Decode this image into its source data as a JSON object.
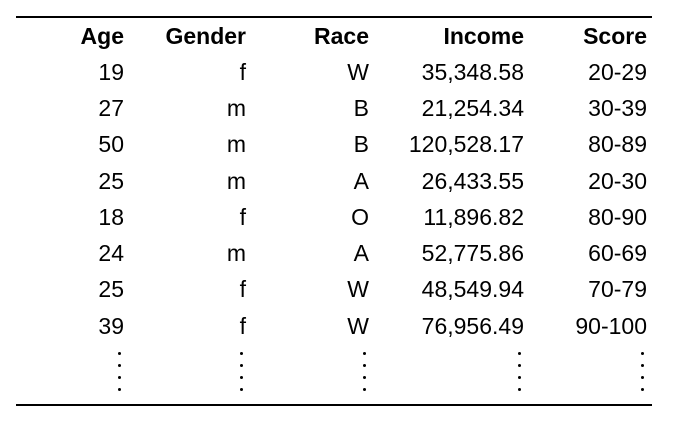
{
  "table": {
    "headers": {
      "age": "Age",
      "gender": "Gender",
      "race": "Race",
      "income": "Income",
      "score": "Score"
    },
    "rows": [
      {
        "age": "19",
        "gender": "f",
        "race": "W",
        "income": "35,348.58",
        "score": "20-29"
      },
      {
        "age": "27",
        "gender": "m",
        "race": "B",
        "income": "21,254.34",
        "score": "30-39"
      },
      {
        "age": "50",
        "gender": "m",
        "race": "B",
        "income": "120,528.17",
        "score": "80-89"
      },
      {
        "age": "25",
        "gender": "m",
        "race": "A",
        "income": "26,433.55",
        "score": "20-30"
      },
      {
        "age": "18",
        "gender": "f",
        "race": "O",
        "income": "11,896.82",
        "score": "80-90"
      },
      {
        "age": "24",
        "gender": "m",
        "race": "A",
        "income": "52,775.86",
        "score": "60-69"
      },
      {
        "age": "25",
        "gender": "f",
        "race": "W",
        "income": "48,549.94",
        "score": "70-79"
      },
      {
        "age": "39",
        "gender": "f",
        "race": "W",
        "income": "76,956.49",
        "score": "90-100"
      }
    ]
  }
}
